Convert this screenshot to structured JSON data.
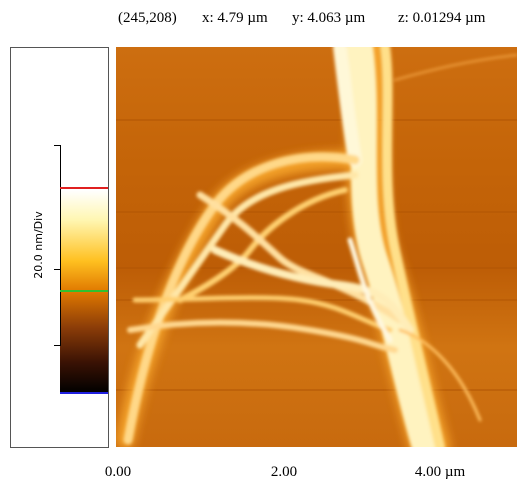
{
  "status": {
    "pixel": "(245,208)",
    "x": "x: 4.79 µm",
    "y": "y: 4.063 µm",
    "z": "z: 0.01294 µm"
  },
  "scale_label": "20.0 nm/Div",
  "axis_labels": [
    "0.00",
    "2.00",
    "4.00 µm"
  ]
}
